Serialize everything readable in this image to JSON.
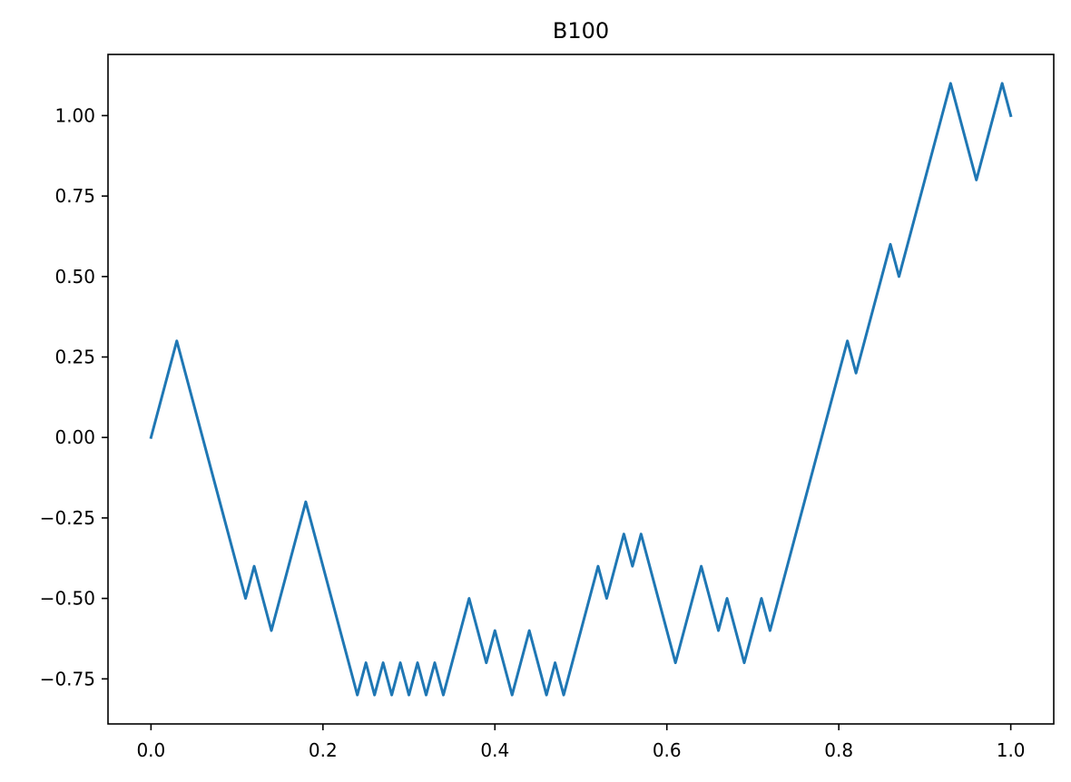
{
  "chart_data": {
    "type": "line",
    "title": "B100",
    "xlabel": "",
    "ylabel": "",
    "xlim": [
      -0.05,
      1.05
    ],
    "ylim": [
      -0.89,
      1.19
    ],
    "grid": false,
    "legend": "none",
    "x_ticks": [
      0.0,
      0.2,
      0.4,
      0.6,
      0.8,
      1.0
    ],
    "x_tick_labels": [
      "0.0",
      "0.2",
      "0.4",
      "0.6",
      "0.8",
      "1.0"
    ],
    "y_ticks": [
      -0.75,
      -0.5,
      -0.25,
      0.0,
      0.25,
      0.5,
      0.75,
      1.0
    ],
    "y_tick_labels": [
      "−0.75",
      "−0.50",
      "−0.25",
      "0.00",
      "0.25",
      "0.50",
      "0.75",
      "1.00"
    ],
    "series": [
      {
        "color": "#1f77b4",
        "x": [
          0.0,
          0.01,
          0.02,
          0.03,
          0.04,
          0.05,
          0.06,
          0.07,
          0.08,
          0.09,
          0.1,
          0.11,
          0.12,
          0.13,
          0.14,
          0.15,
          0.16,
          0.17,
          0.18,
          0.19,
          0.2,
          0.21,
          0.22,
          0.23,
          0.24,
          0.25,
          0.26,
          0.27,
          0.28,
          0.29,
          0.3,
          0.31,
          0.32,
          0.33,
          0.34,
          0.35,
          0.36,
          0.37,
          0.38,
          0.39,
          0.4,
          0.41,
          0.42,
          0.43,
          0.44,
          0.45,
          0.46,
          0.47,
          0.48,
          0.49,
          0.5,
          0.51,
          0.52,
          0.53,
          0.54,
          0.55,
          0.56,
          0.57,
          0.58,
          0.59,
          0.6,
          0.61,
          0.62,
          0.63,
          0.64,
          0.65,
          0.66,
          0.67,
          0.68,
          0.69,
          0.7,
          0.71,
          0.72,
          0.73,
          0.74,
          0.75,
          0.76,
          0.77,
          0.78,
          0.79,
          0.8,
          0.81,
          0.82,
          0.83,
          0.84,
          0.85,
          0.86,
          0.87,
          0.88,
          0.89,
          0.9,
          0.91,
          0.92,
          0.93,
          0.94,
          0.95,
          0.96,
          0.97,
          0.98,
          0.99,
          1.0
        ],
        "y": [
          0.0,
          0.1,
          0.2,
          0.3,
          0.2,
          0.1,
          0.0,
          -0.1,
          -0.2,
          -0.3,
          -0.4,
          -0.5,
          -0.4,
          -0.5,
          -0.6,
          -0.5,
          -0.4,
          -0.3,
          -0.2,
          -0.3,
          -0.4,
          -0.5,
          -0.6,
          -0.7,
          -0.8,
          -0.7,
          -0.8,
          -0.7,
          -0.8,
          -0.7,
          -0.8,
          -0.7,
          -0.8,
          -0.7,
          -0.8,
          -0.7,
          -0.6,
          -0.5,
          -0.6,
          -0.7,
          -0.6,
          -0.7,
          -0.8,
          -0.7,
          -0.6,
          -0.7,
          -0.8,
          -0.7,
          -0.8,
          -0.7,
          -0.6,
          -0.5,
          -0.4,
          -0.5,
          -0.4,
          -0.3,
          -0.4,
          -0.3,
          -0.4,
          -0.5,
          -0.6,
          -0.7,
          -0.6,
          -0.5,
          -0.4,
          -0.5,
          -0.6,
          -0.5,
          -0.6,
          -0.7,
          -0.6,
          -0.5,
          -0.6,
          -0.5,
          -0.4,
          -0.3,
          -0.2,
          -0.1,
          0.0,
          0.1,
          0.2,
          0.3,
          0.2,
          0.3,
          0.4,
          0.5,
          0.6,
          0.5,
          0.6,
          0.7,
          0.8,
          0.9,
          1.0,
          1.1,
          1.0,
          0.9,
          0.8,
          0.9,
          1.0,
          1.1,
          1.0
        ]
      }
    ]
  }
}
